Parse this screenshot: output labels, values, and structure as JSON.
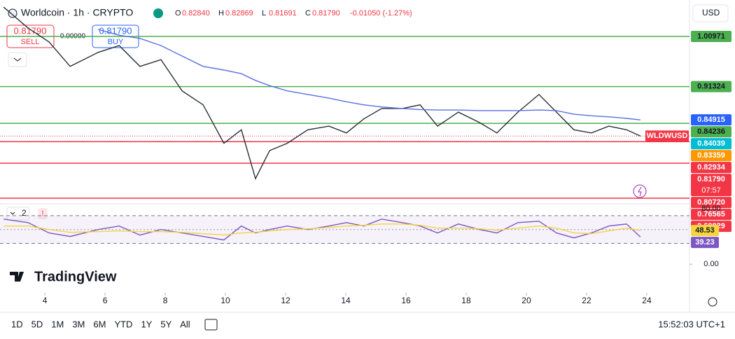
{
  "header": {
    "symbol": "Worldcoin · 1h · CRYPTO",
    "ohlc": [
      {
        "label": "O",
        "value": "0.82840"
      },
      {
        "label": "H",
        "value": "0.82869"
      },
      {
        "label": "L",
        "value": "0.81691"
      },
      {
        "label": "C",
        "value": "0.81790"
      }
    ],
    "change": "-0.01050 (-1.27%)",
    "currency": "USD"
  },
  "trade": {
    "sell_price": "0.81790",
    "sell": "SELL",
    "spread": "0.00000",
    "buy_price": "0.81790",
    "buy": "BUY"
  },
  "symbol_tag": "WLDWUSD",
  "pane_index": "2",
  "logo": "TradingView",
  "timeframes": [
    "1D",
    "5D",
    "1M",
    "3M",
    "6M",
    "YTD",
    "1Y",
    "5Y",
    "All"
  ],
  "clock": "15:52:03 UTC+1",
  "chart_data": [
    {
      "type": "line",
      "x": [
        2.63,
        3.44,
        4.14,
        4.84,
        5.77,
        6.47,
        7.16,
        7.86,
        8.56,
        9.26,
        9.95,
        10.53,
        11.0,
        11.47,
        12.05,
        12.74,
        13.44,
        14.02,
        14.6,
        15.19,
        15.88,
        16.47,
        17.05,
        17.74,
        18.44,
        19.02,
        19.72,
        20.42,
        21.0,
        21.58,
        22.16,
        22.74,
        23.33,
        23.79
      ],
      "series": [
        {
          "color": "#2a2e39",
          "values": [
            1.066,
            1.026,
            0.999,
            0.952,
            0.979,
            0.992,
            0.952,
            0.965,
            0.905,
            0.878,
            0.804,
            0.83,
            0.736,
            0.79,
            0.804,
            0.83,
            0.837,
            0.824,
            0.851,
            0.871,
            0.871,
            0.878,
            0.837,
            0.864,
            0.844,
            0.824,
            0.864,
            0.898,
            0.864,
            0.83,
            0.824,
            0.837,
            0.83,
            0.8179
          ]
        },
        {
          "color": "#5b6ee1",
          "values": [
            null,
            null,
            null,
            null,
            1.023,
            1.012,
            1.006,
            0.992,
            0.972,
            0.952,
            0.945,
            0.938,
            0.925,
            0.915,
            0.905,
            0.898,
            0.891,
            0.884,
            0.878,
            0.874,
            0.871,
            0.869,
            0.868,
            0.868,
            0.867,
            0.867,
            0.867,
            0.868,
            0.867,
            0.86,
            0.857,
            0.855,
            0.852,
            0.849
          ]
        }
      ],
      "xlim": [
        2.51,
        25.42
      ],
      "xticks": [
        4,
        6,
        8,
        10,
        12,
        14,
        16,
        18,
        20,
        22,
        24
      ],
      "ylim": [
        0.6889,
        1.0798
      ],
      "price_labels": [
        {
          "value": 1.00971,
          "label": "1.00971",
          "color": "#4caf50",
          "line": true
        },
        {
          "value": 0.91324,
          "label": "0.91324",
          "color": "#4caf50",
          "line": true
        },
        {
          "value": 0.84915,
          "label": "0.84915",
          "color": "#2962ff"
        },
        {
          "value": 0.84236,
          "label": "0.84236",
          "color": "#4caf50",
          "line": true
        },
        {
          "value": 0.84039,
          "label": "0.84039",
          "color": "#00bcd4"
        },
        {
          "value": 0.83359,
          "label": "0.83359",
          "color": "#ff9800"
        },
        {
          "value": 0.82934,
          "label": "0.82934",
          "color": "#f23645"
        },
        {
          "value": 0.8179,
          "label": "0.81790",
          "color": "#f23645",
          "countdown": "07:57",
          "dotted": true
        },
        {
          "value": 0.8072,
          "label": "0.80720",
          "color": "#f23645",
          "line": true
        },
        {
          "value": 0.76565,
          "label": "0.76565",
          "color": "#f23645",
          "line": true
        },
        {
          "value": 0.69829,
          "label": "0.69829",
          "color": "#f23645",
          "line": true
        }
      ]
    },
    {
      "type": "line",
      "series": [
        {
          "color": "#7e57c2",
          "last_label": "39.23",
          "values": [
            65,
            60,
            45,
            40,
            50,
            55,
            42,
            50,
            45,
            40,
            35,
            55,
            45,
            50,
            55,
            50,
            55,
            60,
            55,
            65,
            60,
            55,
            45,
            58,
            50,
            45,
            60,
            62,
            45,
            38,
            45,
            55,
            58,
            39.23
          ]
        },
        {
          "color": "#f5d442",
          "last_label": "48.53",
          "values": [
            55,
            55,
            50,
            46,
            47,
            48,
            47,
            47,
            46,
            44,
            42,
            45,
            46,
            48,
            50,
            51,
            53,
            55,
            56,
            58,
            58,
            56,
            52,
            52,
            51,
            49,
            52,
            55,
            52,
            45,
            44,
            48,
            52,
            48.53
          ]
        }
      ],
      "ylim": [
        -33,
        87
      ],
      "yticks": [
        {
          "value": 80,
          "label": "80.00"
        },
        {
          "value": 0,
          "label": "0.00"
        }
      ],
      "bands": [
        70,
        30
      ],
      "midline": 50
    }
  ]
}
